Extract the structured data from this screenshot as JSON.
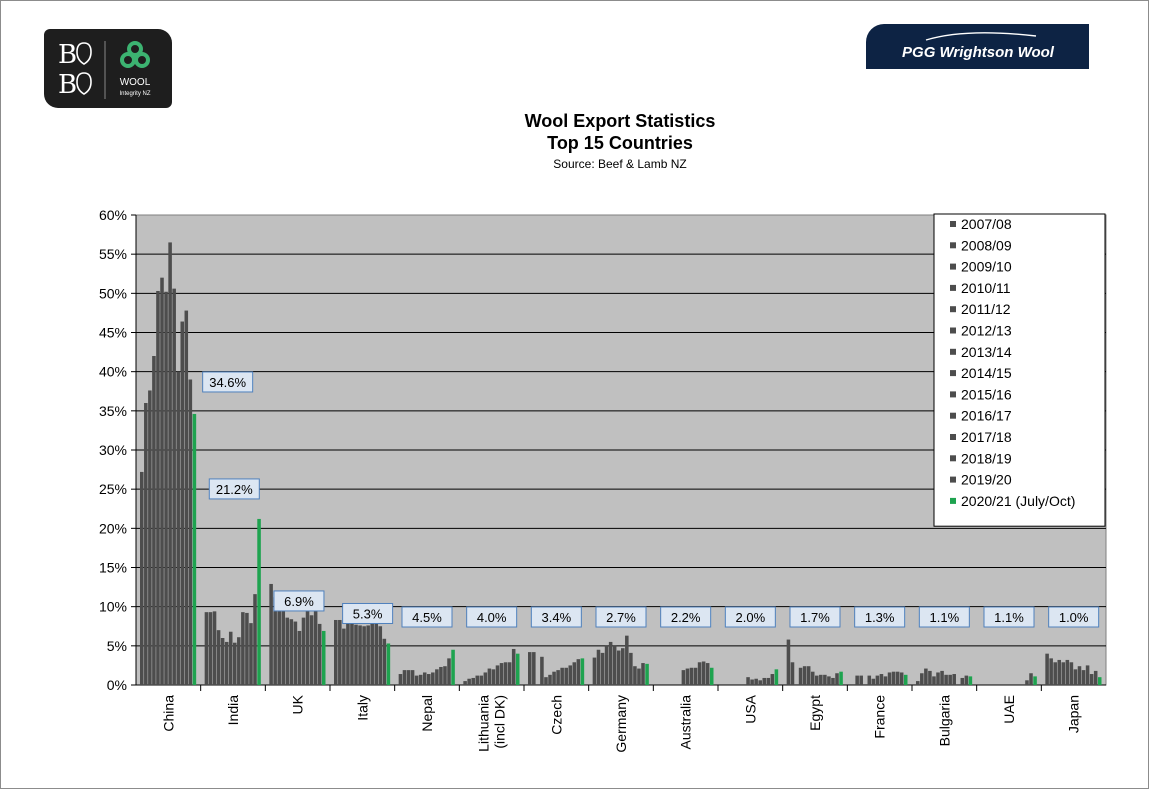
{
  "chart_data": {
    "type": "bar",
    "title": "Wool Export Statistics",
    "subtitle": "Top 15 Countries",
    "source": "Source: Beef & Lamb NZ",
    "ylim": [
      0,
      60
    ],
    "ytick_step": 5,
    "ytick_labels": [
      "0%",
      "5%",
      "10%",
      "15%",
      "20%",
      "25%",
      "30%",
      "35%",
      "40%",
      "45%",
      "50%",
      "55%",
      "60%"
    ],
    "grid": true,
    "legend_position": "top-right",
    "categories": [
      "China",
      "India",
      "UK",
      "Italy",
      "Nepal",
      "Lithuania (incl DK)",
      "Czech",
      "Germany",
      "Australia",
      "USA",
      "Egypt",
      "France",
      "Bulgaria",
      "UAE",
      "Japan"
    ],
    "category_label_lines": [
      [
        "China"
      ],
      [
        "India"
      ],
      [
        "UK"
      ],
      [
        "Italy"
      ],
      [
        "Nepal"
      ],
      [
        "Lithuania",
        "(incl DK)"
      ],
      [
        "Czech"
      ],
      [
        "Germany"
      ],
      [
        "Australia"
      ],
      [
        "USA"
      ],
      [
        "Egypt"
      ],
      [
        "France"
      ],
      [
        "Bulgaria"
      ],
      [
        "UAE"
      ],
      [
        "Japan"
      ]
    ],
    "series_names": [
      "2007/08",
      "2008/09",
      "2009/10",
      "2010/11",
      "2011/12",
      "2012/13",
      "2013/14",
      "2014/15",
      "2015/16",
      "2016/17",
      "2017/18",
      "2018/19",
      "2019/20",
      "2020/21 (July/Oct)"
    ],
    "series_colors": [
      "#4d4d4d",
      "#4d4d4d",
      "#4d4d4d",
      "#4d4d4d",
      "#4d4d4d",
      "#4d4d4d",
      "#4d4d4d",
      "#4d4d4d",
      "#4d4d4d",
      "#4d4d4d",
      "#4d4d4d",
      "#4d4d4d",
      "#4d4d4d",
      "#1ea34f"
    ],
    "values_by_country": [
      [
        27.2,
        36,
        37.6,
        42,
        50.3,
        52,
        50.2,
        56.5,
        50.6,
        40,
        46.4,
        47.8,
        39,
        34.6
      ],
      [
        9.3,
        9.3,
        9.4,
        7,
        6,
        5.5,
        6.8,
        5.4,
        6.1,
        9.3,
        9.2,
        7.9,
        11.6,
        21.2
      ],
      [
        12.9,
        11.2,
        10.7,
        10.3,
        8.6,
        8.4,
        8.1,
        6.9,
        8.6,
        9.7,
        8.9,
        10.6,
        7.8,
        6.9
      ],
      [
        8.3,
        8.3,
        7.2,
        8.4,
        8.3,
        7.7,
        7.6,
        7.5,
        7.6,
        8.7,
        9,
        7.5,
        5.9,
        5.3
      ],
      [
        1.4,
        1.9,
        1.9,
        1.9,
        1.2,
        1.3,
        1.6,
        1.4,
        1.6,
        2,
        2.3,
        2.4,
        3.4,
        4.5
      ],
      [
        0.5,
        0.8,
        0.9,
        1.2,
        1.2,
        1.6,
        2.1,
        2,
        2.5,
        2.8,
        2.9,
        2.9,
        4.6,
        4.0
      ],
      [
        4.2,
        4.2,
        0,
        3.6,
        1,
        1.3,
        1.7,
        1.9,
        2.2,
        2.2,
        2.5,
        2.9,
        3.3,
        3.4
      ],
      [
        3.5,
        4.5,
        4.1,
        5,
        5.5,
        5,
        4.4,
        4.7,
        6.3,
        4.1,
        2.4,
        2.1,
        2.8,
        2.7
      ],
      [
        0,
        0,
        0,
        0,
        0,
        0,
        1.9,
        2.1,
        2.2,
        2.2,
        2.9,
        3,
        2.8,
        2.2
      ],
      [
        0,
        0,
        0,
        0,
        0,
        0,
        1,
        0.7,
        0.8,
        0.6,
        0.9,
        0.9,
        1.4,
        2.0
      ],
      [
        5.8,
        2.9,
        0,
        2.2,
        2.4,
        2.4,
        1.7,
        1.2,
        1.3,
        1.3,
        1.1,
        0.9,
        1.5,
        1.7
      ],
      [
        0,
        1.2,
        1.2,
        0,
        1.2,
        0.8,
        1.2,
        1.4,
        1.1,
        1.6,
        1.7,
        1.7,
        1.6,
        1.3
      ],
      [
        0.5,
        1.5,
        2.1,
        1.8,
        1.1,
        1.6,
        1.8,
        1.3,
        1.3,
        1.4,
        0,
        0.9,
        1.2,
        1.1
      ],
      [
        0,
        0,
        0,
        0,
        0,
        0,
        0,
        0,
        0,
        0,
        0,
        0.6,
        1.5,
        1.1
      ],
      [
        4,
        3.4,
        2.9,
        3.2,
        2.9,
        3.2,
        2.9,
        2,
        2.4,
        1.9,
        2.5,
        1.4,
        1.8,
        1.0
      ]
    ],
    "data_labels": [
      "34.6%",
      "21.2%",
      "6.9%",
      "5.3%",
      "4.5%",
      "4.0%",
      "3.4%",
      "2.7%",
      "2.2%",
      "2.0%",
      "1.7%",
      "1.3%",
      "1.1%",
      "1.1%",
      "1.0%"
    ]
  },
  "logos": {
    "left_monogram_top": "B",
    "left_monogram_bottom": "B",
    "left_brand": "WOOL",
    "left_brand_sub": "Integrity NZ",
    "right_brand": "PGG Wrightson Wool"
  },
  "colors": {
    "plot_background": "#c0c0c0",
    "bar_dark": "#4d4d4d",
    "bar_current": "#1ea34f",
    "label_box_fill": "#dce6f2",
    "label_box_border": "#4f81bd"
  }
}
